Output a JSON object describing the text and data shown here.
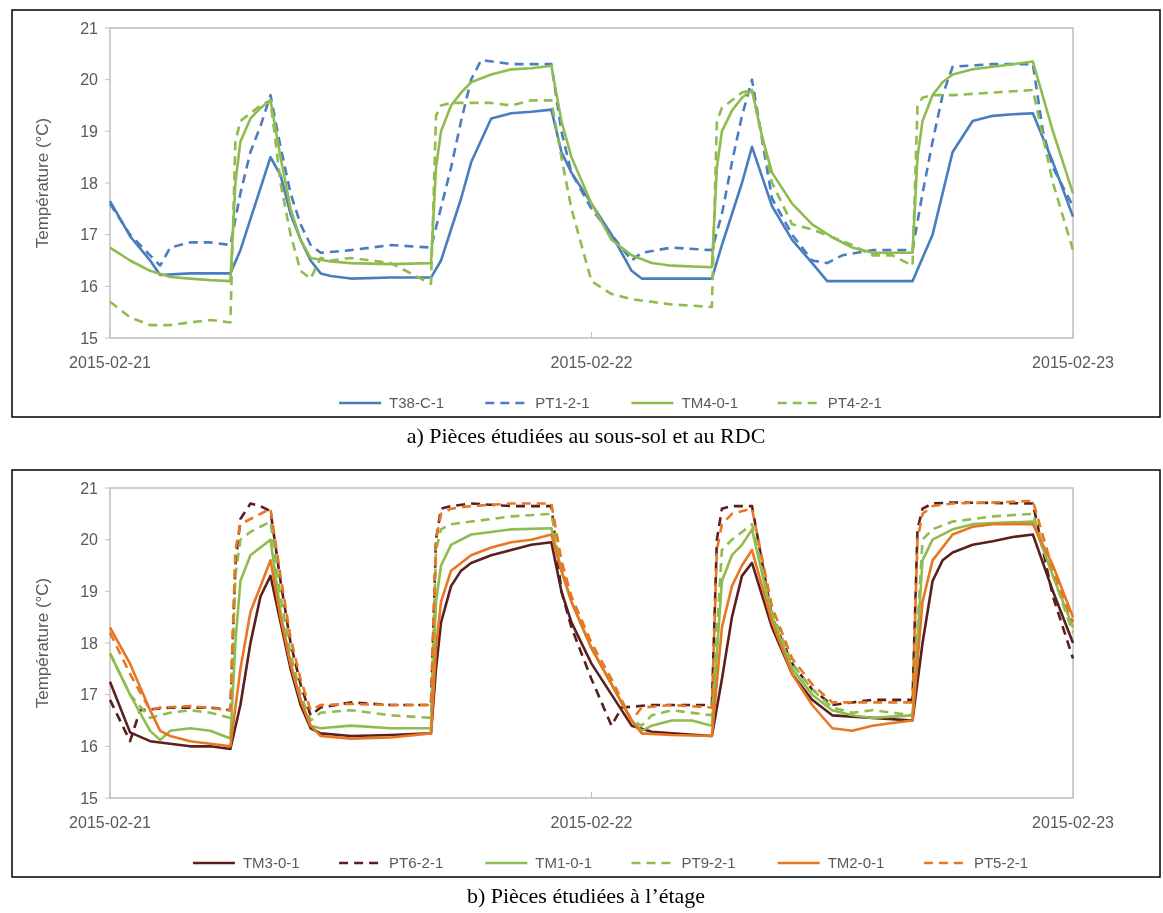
{
  "chart_data": [
    {
      "type": "line",
      "title": "a)   Pièces étudiées au sous-sol et au RDC",
      "ylabel": "Température (°C)",
      "xlim": [
        "2015-02-21",
        "2015-02-23"
      ],
      "xticks": [
        "2015-02-21",
        "2015-02-22",
        "2015-02-23"
      ],
      "ylim": [
        15,
        21
      ],
      "yticks": [
        15,
        16,
        17,
        18,
        19,
        20,
        21
      ],
      "grid": false,
      "legend": "bottom",
      "series": [
        {
          "name": "T38-C-1",
          "color": "#4a7dc0",
          "line_style": "solid",
          "x": [
            "2015-02-21T00:00",
            "2015-02-21T01:00",
            "2015-02-21T02:00",
            "2015-02-21T02:30",
            "2015-02-21T04:00",
            "2015-02-21T06:00",
            "2015-02-21T06:30",
            "2015-02-21T07:00",
            "2015-02-21T07:30",
            "2015-02-21T08:00",
            "2015-02-21T08:30",
            "2015-02-21T09:00",
            "2015-02-21T09:30",
            "2015-02-21T10:00",
            "2015-02-21T10:30",
            "2015-02-21T11:00",
            "2015-02-21T12:00",
            "2015-02-21T14:00",
            "2015-02-21T16:00",
            "2015-02-21T16:30",
            "2015-02-21T17:00",
            "2015-02-21T17:30",
            "2015-02-21T18:00",
            "2015-02-21T19:00",
            "2015-02-21T20:00",
            "2015-02-21T21:00",
            "2015-02-21T22:00",
            "2015-02-21T22:30",
            "2015-02-21T23:00",
            "2015-02-22T00:00",
            "2015-02-22T01:00",
            "2015-02-22T02:00",
            "2015-02-22T02:30",
            "2015-02-22T04:00",
            "2015-02-22T06:00",
            "2015-02-22T06:30",
            "2015-02-22T07:00",
            "2015-02-22T07:30",
            "2015-02-22T08:00",
            "2015-02-22T09:00",
            "2015-02-22T10:00",
            "2015-02-22T11:00",
            "2015-02-22T11:45",
            "2015-02-22T14:00",
            "2015-02-22T16:00",
            "2015-02-22T17:00",
            "2015-02-22T18:00",
            "2015-02-22T19:00",
            "2015-02-22T20:00",
            "2015-02-22T21:00",
            "2015-02-22T22:00",
            "2015-02-22T23:00",
            "2015-02-23T00:00"
          ],
          "values": [
            17.65,
            16.97,
            16.5,
            16.22,
            16.25,
            16.25,
            16.7,
            17.3,
            17.9,
            18.5,
            18.15,
            17.4,
            16.9,
            16.5,
            16.25,
            16.2,
            16.15,
            16.17,
            16.17,
            16.5,
            17.1,
            17.7,
            18.4,
            19.25,
            19.35,
            19.38,
            19.42,
            18.6,
            18.2,
            17.6,
            17.0,
            16.3,
            16.15,
            16.15,
            16.15,
            16.8,
            17.4,
            18.0,
            18.7,
            17.55,
            16.9,
            16.45,
            16.1,
            16.1,
            16.1,
            17.0,
            18.6,
            19.2,
            19.3,
            19.33,
            19.35,
            18.4,
            17.35
          ]
        },
        {
          "name": "PT1-2-1",
          "color": "#4a7dc0",
          "line_style": "dashed",
          "x": [
            "2015-02-21T00:00",
            "2015-02-21T01:00",
            "2015-02-21T02:00",
            "2015-02-21T02:30",
            "2015-02-21T03:00",
            "2015-02-21T04:00",
            "2015-02-21T05:00",
            "2015-02-21T06:00",
            "2015-02-21T06:30",
            "2015-02-21T07:00",
            "2015-02-21T07:30",
            "2015-02-21T08:00",
            "2015-02-21T08:30",
            "2015-02-21T09:00",
            "2015-02-21T09:30",
            "2015-02-21T10:00",
            "2015-02-21T10:30",
            "2015-02-21T12:00",
            "2015-02-21T14:00",
            "2015-02-21T16:00",
            "2015-02-21T17:00",
            "2015-02-21T17:30",
            "2015-02-21T18:00",
            "2015-02-21T18:30",
            "2015-02-21T20:00",
            "2015-02-21T22:00",
            "2015-02-21T22:30",
            "2015-02-21T23:00",
            "2015-02-22T00:00",
            "2015-02-22T01:00",
            "2015-02-22T02:00",
            "2015-02-22T02:30",
            "2015-02-22T04:00",
            "2015-02-22T06:00",
            "2015-02-22T06:30",
            "2015-02-22T07:00",
            "2015-02-22T07:30",
            "2015-02-22T08:00",
            "2015-02-22T09:00",
            "2015-02-22T10:00",
            "2015-02-22T11:00",
            "2015-02-22T11:45",
            "2015-02-22T12:30",
            "2015-02-22T14:00",
            "2015-02-22T16:00",
            "2015-02-22T16:30",
            "2015-02-22T17:00",
            "2015-02-22T17:30",
            "2015-02-22T18:00",
            "2015-02-22T20:00",
            "2015-02-22T22:00",
            "2015-02-22T22:30",
            "2015-02-22T23:00",
            "2015-02-23T00:00"
          ],
          "values": [
            17.6,
            17.0,
            16.6,
            16.4,
            16.75,
            16.85,
            16.85,
            16.8,
            17.8,
            18.6,
            19.1,
            19.7,
            18.7,
            17.8,
            17.2,
            16.8,
            16.65,
            16.7,
            16.8,
            16.75,
            18.3,
            19.2,
            20.0,
            20.38,
            20.3,
            20.3,
            19.0,
            18.2,
            17.5,
            17.0,
            16.5,
            16.65,
            16.75,
            16.7,
            17.4,
            18.4,
            19.3,
            20.0,
            17.7,
            17.0,
            16.5,
            16.45,
            16.6,
            16.7,
            16.7,
            17.8,
            18.8,
            19.7,
            20.25,
            20.3,
            20.3,
            19.0,
            18.3,
            17.55
          ]
        },
        {
          "name": "TM4-0-1",
          "color": "#8fbc4f",
          "line_style": "solid",
          "x": [
            "2015-02-21T00:00",
            "2015-02-21T01:00",
            "2015-02-21T02:00",
            "2015-02-21T03:00",
            "2015-02-21T04:00",
            "2015-02-21T05:00",
            "2015-02-21T06:00",
            "2015-02-21T06:15",
            "2015-02-21T06:30",
            "2015-02-21T07:00",
            "2015-02-21T07:30",
            "2015-02-21T08:00",
            "2015-02-21T08:30",
            "2015-02-21T09:00",
            "2015-02-21T09:30",
            "2015-02-21T10:00",
            "2015-02-21T11:00",
            "2015-02-21T12:00",
            "2015-02-21T14:00",
            "2015-02-21T16:00",
            "2015-02-21T16:15",
            "2015-02-21T16:30",
            "2015-02-21T17:00",
            "2015-02-21T17:30",
            "2015-02-21T18:00",
            "2015-02-21T19:00",
            "2015-02-21T20:00",
            "2015-02-21T21:00",
            "2015-02-21T22:00",
            "2015-02-21T22:30",
            "2015-02-21T23:00",
            "2015-02-22T00:00",
            "2015-02-22T01:00",
            "2015-02-22T02:00",
            "2015-02-22T03:00",
            "2015-02-22T04:00",
            "2015-02-22T06:00",
            "2015-02-22T06:15",
            "2015-02-22T06:30",
            "2015-02-22T07:00",
            "2015-02-22T07:30",
            "2015-02-22T08:00",
            "2015-02-22T08:30",
            "2015-02-22T09:00",
            "2015-02-22T10:00",
            "2015-02-22T11:00",
            "2015-02-22T12:00",
            "2015-02-22T13:00",
            "2015-02-22T14:00",
            "2015-02-22T16:00",
            "2015-02-22T16:15",
            "2015-02-22T16:30",
            "2015-02-22T17:00",
            "2015-02-22T17:30",
            "2015-02-22T18:00",
            "2015-02-22T19:00",
            "2015-02-22T20:00",
            "2015-02-22T21:00",
            "2015-02-22T22:00",
            "2015-02-22T23:00",
            "2015-02-23T00:00"
          ],
          "values": [
            16.75,
            16.5,
            16.3,
            16.18,
            16.15,
            16.12,
            16.1,
            18.0,
            18.8,
            19.25,
            19.45,
            19.6,
            18.5,
            17.5,
            16.9,
            16.55,
            16.48,
            16.45,
            16.43,
            16.45,
            18.3,
            19.0,
            19.5,
            19.75,
            19.95,
            20.1,
            20.2,
            20.22,
            20.27,
            19.2,
            18.5,
            17.6,
            16.9,
            16.6,
            16.45,
            16.4,
            16.37,
            18.3,
            19.0,
            19.4,
            19.65,
            19.8,
            18.9,
            18.2,
            17.6,
            17.2,
            16.95,
            16.75,
            16.65,
            16.65,
            18.5,
            19.2,
            19.7,
            19.95,
            20.1,
            20.2,
            20.25,
            20.3,
            20.35,
            19.0,
            17.8
          ]
        },
        {
          "name": "PT4-2-1",
          "color": "#8fbc4f",
          "line_style": "dashed",
          "x": [
            "2015-02-21T00:00",
            "2015-02-21T01:00",
            "2015-02-21T02:00",
            "2015-02-21T03:00",
            "2015-02-21T04:00",
            "2015-02-21T05:00",
            "2015-02-21T06:00",
            "2015-02-21T06:15",
            "2015-02-21T06:30",
            "2015-02-21T07:00",
            "2015-02-21T07:30",
            "2015-02-21T08:00",
            "2015-02-21T08:30",
            "2015-02-21T09:00",
            "2015-02-21T09:30",
            "2015-02-21T10:00",
            "2015-02-21T10:30",
            "2015-02-21T11:00",
            "2015-02-21T12:00",
            "2015-02-21T14:00",
            "2015-02-21T16:00",
            "2015-02-21T16:15",
            "2015-02-21T16:30",
            "2015-02-21T17:00",
            "2015-02-21T19:00",
            "2015-02-21T20:00",
            "2015-02-21T21:00",
            "2015-02-21T22:00",
            "2015-02-21T22:30",
            "2015-02-21T23:00",
            "2015-02-22T00:00",
            "2015-02-22T01:00",
            "2015-02-22T02:00",
            "2015-02-22T03:00",
            "2015-02-22T04:00",
            "2015-02-22T06:00",
            "2015-02-22T06:15",
            "2015-02-22T06:30",
            "2015-02-22T07:00",
            "2015-02-22T07:30",
            "2015-02-22T08:00",
            "2015-02-22T09:00",
            "2015-02-22T10:00",
            "2015-02-22T11:00",
            "2015-02-22T12:00",
            "2015-02-22T13:00",
            "2015-02-22T14:00",
            "2015-02-22T15:00",
            "2015-02-22T16:00",
            "2015-02-22T16:15",
            "2015-02-22T16:30",
            "2015-02-22T17:00",
            "2015-02-22T18:00",
            "2015-02-22T20:00",
            "2015-02-22T22:00",
            "2015-02-22T22:30",
            "2015-02-22T23:00",
            "2015-02-23T00:00"
          ],
          "values": [
            15.7,
            15.4,
            15.25,
            15.25,
            15.3,
            15.35,
            15.3,
            18.8,
            19.2,
            19.35,
            19.5,
            19.6,
            18.0,
            17.0,
            16.3,
            16.15,
            16.55,
            16.5,
            16.55,
            16.45,
            16.05,
            19.3,
            19.5,
            19.55,
            19.55,
            19.5,
            19.6,
            19.6,
            18.5,
            17.5,
            16.1,
            15.85,
            15.75,
            15.7,
            15.65,
            15.6,
            19.2,
            19.45,
            19.6,
            19.75,
            19.8,
            18.0,
            17.2,
            17.1,
            16.95,
            16.8,
            16.6,
            16.6,
            16.4,
            19.5,
            19.65,
            19.7,
            19.7,
            19.75,
            19.8,
            18.9,
            18.0,
            16.7
          ]
        }
      ]
    },
    {
      "type": "line",
      "title": "b)   Pièces étudiées à l’étage",
      "ylabel": "Température (°C)",
      "xlim": [
        "2015-02-21",
        "2015-02-23"
      ],
      "xticks": [
        "2015-02-21",
        "2015-02-22",
        "2015-02-23"
      ],
      "ylim": [
        15,
        21
      ],
      "yticks": [
        15,
        16,
        17,
        18,
        19,
        20,
        21
      ],
      "grid": false,
      "legend": "bottom",
      "series": [
        {
          "name": "TM3-0-1",
          "color": "#5c1f1f",
          "line_style": "solid",
          "x": [
            "2015-02-21T00:00",
            "2015-02-21T01:00",
            "2015-02-21T02:00",
            "2015-02-21T03:00",
            "2015-02-21T04:00",
            "2015-02-21T05:00",
            "2015-02-21T06:00",
            "2015-02-21T06:30",
            "2015-02-21T07:00",
            "2015-02-21T07:30",
            "2015-02-21T08:00",
            "2015-02-21T08:30",
            "2015-02-21T09:00",
            "2015-02-21T09:30",
            "2015-02-21T10:00",
            "2015-02-21T10:30",
            "2015-02-21T12:00",
            "2015-02-21T14:00",
            "2015-02-21T16:00",
            "2015-02-21T16:15",
            "2015-02-21T16:30",
            "2015-02-21T17:00",
            "2015-02-21T17:30",
            "2015-02-21T18:00",
            "2015-02-21T19:00",
            "2015-02-21T20:00",
            "2015-02-21T21:00",
            "2015-02-21T22:00",
            "2015-02-21T22:30",
            "2015-02-21T23:00",
            "2015-02-22T00:00",
            "2015-02-22T01:00",
            "2015-02-22T02:00",
            "2015-02-22T03:00",
            "2015-02-22T04:00",
            "2015-02-22T06:00",
            "2015-02-22T06:30",
            "2015-02-22T07:00",
            "2015-02-22T07:30",
            "2015-02-22T08:00",
            "2015-02-22T09:00",
            "2015-02-22T10:00",
            "2015-02-22T11:00",
            "2015-02-22T12:00",
            "2015-02-22T14:00",
            "2015-02-22T16:00",
            "2015-02-22T16:30",
            "2015-02-22T17:00",
            "2015-02-22T17:30",
            "2015-02-22T18:00",
            "2015-02-22T19:00",
            "2015-02-22T20:00",
            "2015-02-22T21:00",
            "2015-02-22T22:00",
            "2015-02-22T23:00",
            "2015-02-23T00:00"
          ],
          "values": [
            17.25,
            16.27,
            16.1,
            16.05,
            16.0,
            16.0,
            15.95,
            16.8,
            18.0,
            18.9,
            19.3,
            18.4,
            17.5,
            16.8,
            16.35,
            16.25,
            16.2,
            16.22,
            16.25,
            17.5,
            18.4,
            19.1,
            19.4,
            19.55,
            19.7,
            19.8,
            19.9,
            19.95,
            19.0,
            18.4,
            17.6,
            17.0,
            16.4,
            16.28,
            16.25,
            16.2,
            17.3,
            18.5,
            19.3,
            19.55,
            18.3,
            17.4,
            16.9,
            16.6,
            16.55,
            16.5,
            18.0,
            19.2,
            19.6,
            19.75,
            19.9,
            19.97,
            20.05,
            20.1,
            19.0,
            18.0
          ]
        },
        {
          "name": "PT6-2-1",
          "color": "#5c1f1f",
          "line_style": "dashed",
          "x": [
            "2015-02-21T00:00",
            "2015-02-21T01:00",
            "2015-02-21T01:30",
            "2015-02-21T03:00",
            "2015-02-21T05:00",
            "2015-02-21T06:00",
            "2015-02-21T06:15",
            "2015-02-21T06:30",
            "2015-02-21T07:00",
            "2015-02-21T07:30",
            "2015-02-21T08:00",
            "2015-02-21T08:30",
            "2015-02-21T09:00",
            "2015-02-21T09:30",
            "2015-02-21T10:00",
            "2015-02-21T10:30",
            "2015-02-21T12:00",
            "2015-02-21T14:00",
            "2015-02-21T16:00",
            "2015-02-21T16:15",
            "2015-02-21T16:30",
            "2015-02-21T17:00",
            "2015-02-21T18:00",
            "2015-02-21T20:00",
            "2015-02-21T22:00",
            "2015-02-21T22:30",
            "2015-02-21T23:00",
            "2015-02-22T00:00",
            "2015-02-22T01:00",
            "2015-02-22T01:30",
            "2015-02-22T03:00",
            "2015-02-22T06:00",
            "2015-02-22T06:15",
            "2015-02-22T06:30",
            "2015-02-22T07:00",
            "2015-02-22T08:00",
            "2015-02-22T09:00",
            "2015-02-22T10:00",
            "2015-02-22T11:00",
            "2015-02-22T12:00",
            "2015-02-22T13:00",
            "2015-02-22T14:00",
            "2015-02-22T16:00",
            "2015-02-22T16:15",
            "2015-02-22T16:30",
            "2015-02-22T17:00",
            "2015-02-22T18:00",
            "2015-02-22T22:00",
            "2015-02-22T23:00",
            "2015-02-23T00:00"
          ],
          "values": [
            16.9,
            16.1,
            16.7,
            16.75,
            16.75,
            16.7,
            19.5,
            20.4,
            20.7,
            20.65,
            20.55,
            19.2,
            18.0,
            17.2,
            16.6,
            16.75,
            16.85,
            16.8,
            16.8,
            20.0,
            20.6,
            20.65,
            20.7,
            20.65,
            20.65,
            19.0,
            18.3,
            17.3,
            16.4,
            16.75,
            16.8,
            16.8,
            20.0,
            20.6,
            20.65,
            20.65,
            18.5,
            17.6,
            17.1,
            16.8,
            16.85,
            16.9,
            16.9,
            20.2,
            20.6,
            20.7,
            20.72,
            20.7,
            18.9,
            17.7
          ]
        },
        {
          "name": "TM1-0-1",
          "color": "#8fbc4f",
          "line_style": "solid",
          "x": [
            "2015-02-21T00:00",
            "2015-02-21T01:00",
            "2015-02-21T02:00",
            "2015-02-21T02:30",
            "2015-02-21T03:00",
            "2015-02-21T04:00",
            "2015-02-21T05:00",
            "2015-02-21T06:00",
            "2015-02-21T06:15",
            "2015-02-21T06:30",
            "2015-02-21T07:00",
            "2015-02-21T07:30",
            "2015-02-21T08:00",
            "2015-02-21T08:30",
            "2015-02-21T09:00",
            "2015-02-21T09:30",
            "2015-02-21T10:00",
            "2015-02-21T10:30",
            "2015-02-21T12:00",
            "2015-02-21T14:00",
            "2015-02-21T16:00",
            "2015-02-21T16:15",
            "2015-02-21T16:30",
            "2015-02-21T17:00",
            "2015-02-21T18:00",
            "2015-02-21T19:00",
            "2015-02-21T20:00",
            "2015-02-21T22:00",
            "2015-02-21T22:30",
            "2015-02-21T23:00",
            "2015-02-22T00:00",
            "2015-02-22T01:00",
            "2015-02-22T02:00",
            "2015-02-22T02:30",
            "2015-02-22T03:00",
            "2015-02-22T04:00",
            "2015-02-22T05:00",
            "2015-02-22T06:00",
            "2015-02-22T06:30",
            "2015-02-22T07:00",
            "2015-02-22T07:30",
            "2015-02-22T08:00",
            "2015-02-22T09:00",
            "2015-02-22T10:00",
            "2015-02-22T11:00",
            "2015-02-22T12:00",
            "2015-02-22T13:00",
            "2015-02-22T14:00",
            "2015-02-22T16:00",
            "2015-02-22T16:30",
            "2015-02-22T17:00",
            "2015-02-22T18:00",
            "2015-02-22T19:00",
            "2015-02-22T20:00",
            "2015-02-22T22:00",
            "2015-02-22T23:00",
            "2015-02-23T00:00"
          ],
          "values": [
            17.8,
            17.0,
            16.3,
            16.12,
            16.3,
            16.35,
            16.3,
            16.15,
            18.0,
            19.2,
            19.7,
            19.85,
            20.0,
            18.6,
            17.6,
            16.9,
            16.4,
            16.35,
            16.4,
            16.35,
            16.35,
            18.8,
            19.5,
            19.9,
            20.1,
            20.15,
            20.2,
            20.22,
            19.4,
            18.8,
            17.9,
            17.2,
            16.5,
            16.3,
            16.4,
            16.5,
            16.5,
            16.4,
            19.2,
            19.7,
            19.9,
            20.2,
            18.5,
            17.5,
            17.0,
            16.7,
            16.6,
            16.55,
            16.6,
            19.6,
            20.0,
            20.2,
            20.3,
            20.32,
            20.35,
            19.3,
            18.3
          ]
        },
        {
          "name": "PT9-2-1",
          "color": "#8fbc4f",
          "line_style": "dashed",
          "x": [
            "2015-02-21T00:00",
            "2015-02-21T01:00",
            "2015-02-21T02:00",
            "2015-02-21T03:00",
            "2015-02-21T04:00",
            "2015-02-21T05:00",
            "2015-02-21T06:00",
            "2015-02-21T06:15",
            "2015-02-21T06:30",
            "2015-02-21T07:00",
            "2015-02-21T07:30",
            "2015-02-21T08:00",
            "2015-02-21T08:30",
            "2015-02-21T09:00",
            "2015-02-21T09:30",
            "2015-02-21T10:00",
            "2015-02-21T10:30",
            "2015-02-21T12:00",
            "2015-02-21T14:00",
            "2015-02-21T16:00",
            "2015-02-21T16:15",
            "2015-02-21T16:30",
            "2015-02-21T17:00",
            "2015-02-21T18:00",
            "2015-02-21T19:00",
            "2015-02-21T20:00",
            "2015-02-21T22:00",
            "2015-02-21T22:30",
            "2015-02-21T23:00",
            "2015-02-22T00:00",
            "2015-02-22T01:00",
            "2015-02-22T02:00",
            "2015-02-22T02:30",
            "2015-02-22T03:00",
            "2015-02-22T04:00",
            "2015-02-22T06:00",
            "2015-02-22T06:30",
            "2015-02-22T07:00",
            "2015-02-22T08:00",
            "2015-02-22T09:00",
            "2015-02-22T10:00",
            "2015-02-22T11:00",
            "2015-02-22T12:00",
            "2015-02-22T13:00",
            "2015-02-22T14:00",
            "2015-02-22T16:00",
            "2015-02-22T16:30",
            "2015-02-22T17:00",
            "2015-02-22T18:00",
            "2015-02-22T19:00",
            "2015-02-22T20:00",
            "2015-02-22T22:00",
            "2015-02-22T23:00",
            "2015-02-23T00:00"
          ],
          "values": [
            17.8,
            17.0,
            16.55,
            16.65,
            16.7,
            16.65,
            16.55,
            19.3,
            20.0,
            20.15,
            20.25,
            20.35,
            18.9,
            17.8,
            17.0,
            16.5,
            16.65,
            16.7,
            16.6,
            16.55,
            19.8,
            20.2,
            20.3,
            20.35,
            20.4,
            20.45,
            20.5,
            19.5,
            18.8,
            17.9,
            17.2,
            16.5,
            16.4,
            16.6,
            16.7,
            16.6,
            19.8,
            20.0,
            20.3,
            18.6,
            17.6,
            17.1,
            16.75,
            16.65,
            16.7,
            16.6,
            20.0,
            20.2,
            20.35,
            20.4,
            20.45,
            20.5,
            19.3,
            18.2
          ]
        },
        {
          "name": "TM2-0-1",
          "color": "#e87722",
          "line_style": "solid",
          "x": [
            "2015-02-21T00:00",
            "2015-02-21T01:00",
            "2015-02-21T02:00",
            "2015-02-21T02:30",
            "2015-02-21T03:00",
            "2015-02-21T04:00",
            "2015-02-21T05:00",
            "2015-02-21T06:00",
            "2015-02-21T06:30",
            "2015-02-21T07:00",
            "2015-02-21T07:30",
            "2015-02-21T08:00",
            "2015-02-21T08:30",
            "2015-02-21T09:00",
            "2015-02-21T09:30",
            "2015-02-21T10:00",
            "2015-02-21T10:30",
            "2015-02-21T12:00",
            "2015-02-21T14:00",
            "2015-02-21T16:00",
            "2015-02-21T16:15",
            "2015-02-21T16:30",
            "2015-02-21T17:00",
            "2015-02-21T18:00",
            "2015-02-21T19:00",
            "2015-02-21T20:00",
            "2015-02-21T21:00",
            "2015-02-21T22:00",
            "2015-02-21T22:30",
            "2015-02-21T23:00",
            "2015-02-22T00:00",
            "2015-02-22T01:00",
            "2015-02-22T02:00",
            "2015-02-22T02:30",
            "2015-02-22T04:00",
            "2015-02-22T06:00",
            "2015-02-22T06:30",
            "2015-02-22T07:00",
            "2015-02-22T07:30",
            "2015-02-22T08:00",
            "2015-02-22T09:00",
            "2015-02-22T10:00",
            "2015-02-22T11:00",
            "2015-02-22T12:00",
            "2015-02-22T13:00",
            "2015-02-22T14:00",
            "2015-02-22T15:00",
            "2015-02-22T16:00",
            "2015-02-22T16:30",
            "2015-02-22T17:00",
            "2015-02-22T18:00",
            "2015-02-22T19:00",
            "2015-02-22T20:00",
            "2015-02-22T22:00",
            "2015-02-22T23:00",
            "2015-02-23T00:00"
          ],
          "values": [
            18.3,
            17.6,
            16.7,
            16.3,
            16.2,
            16.1,
            16.05,
            16.0,
            17.5,
            18.6,
            19.1,
            19.6,
            18.5,
            17.6,
            16.9,
            16.4,
            16.2,
            16.15,
            16.17,
            16.25,
            17.9,
            18.8,
            19.4,
            19.7,
            19.85,
            19.95,
            20.0,
            20.1,
            19.4,
            18.8,
            17.9,
            17.2,
            16.5,
            16.25,
            16.22,
            16.2,
            18.3,
            19.1,
            19.5,
            19.8,
            18.4,
            17.4,
            16.8,
            16.35,
            16.3,
            16.4,
            16.45,
            16.5,
            18.8,
            19.6,
            20.1,
            20.25,
            20.3,
            20.3,
            19.5,
            18.5
          ]
        },
        {
          "name": "PT5-2-1",
          "color": "#e87722",
          "line_style": "dashed",
          "x": [
            "2015-02-21T00:00",
            "2015-02-21T01:00",
            "2015-02-21T02:00",
            "2015-02-21T02:30",
            "2015-02-21T04:00",
            "2015-02-21T06:00",
            "2015-02-21T06:15",
            "2015-02-21T06:30",
            "2015-02-21T07:00",
            "2015-02-21T07:30",
            "2015-02-21T08:00",
            "2015-02-21T08:30",
            "2015-02-21T09:00",
            "2015-02-21T09:30",
            "2015-02-21T10:00",
            "2015-02-21T10:30",
            "2015-02-21T12:00",
            "2015-02-21T14:00",
            "2015-02-21T16:00",
            "2015-02-21T16:15",
            "2015-02-21T16:30",
            "2015-02-21T17:00",
            "2015-02-21T18:00",
            "2015-02-21T20:00",
            "2015-02-21T22:00",
            "2015-02-21T22:30",
            "2015-02-21T23:00",
            "2015-02-22T00:00",
            "2015-02-22T01:00",
            "2015-02-22T02:00",
            "2015-02-22T02:30",
            "2015-02-22T04:00",
            "2015-02-22T06:00",
            "2015-02-22T06:15",
            "2015-02-22T06:30",
            "2015-02-22T07:00",
            "2015-02-22T08:00",
            "2015-02-22T09:00",
            "2015-02-22T10:00",
            "2015-02-22T11:00",
            "2015-02-22T12:00",
            "2015-02-22T14:00",
            "2015-02-22T16:00",
            "2015-02-22T16:15",
            "2015-02-22T16:30",
            "2015-02-22T17:00",
            "2015-02-22T18:00",
            "2015-02-22T20:00",
            "2015-02-22T22:00",
            "2015-02-22T23:00",
            "2015-02-23T00:00"
          ],
          "values": [
            18.2,
            17.4,
            16.7,
            16.75,
            16.78,
            16.7,
            19.8,
            20.3,
            20.4,
            20.5,
            20.6,
            19.3,
            18.1,
            17.3,
            16.7,
            16.8,
            16.82,
            16.8,
            16.8,
            20.0,
            20.5,
            20.6,
            20.65,
            20.7,
            20.7,
            19.6,
            18.9,
            18.0,
            17.3,
            16.5,
            16.75,
            16.8,
            16.75,
            19.8,
            20.3,
            20.5,
            20.6,
            18.7,
            17.7,
            17.2,
            16.85,
            16.85,
            16.85,
            20.0,
            20.5,
            20.65,
            20.7,
            20.72,
            20.75,
            19.4,
            18.4
          ]
        }
      ]
    }
  ]
}
